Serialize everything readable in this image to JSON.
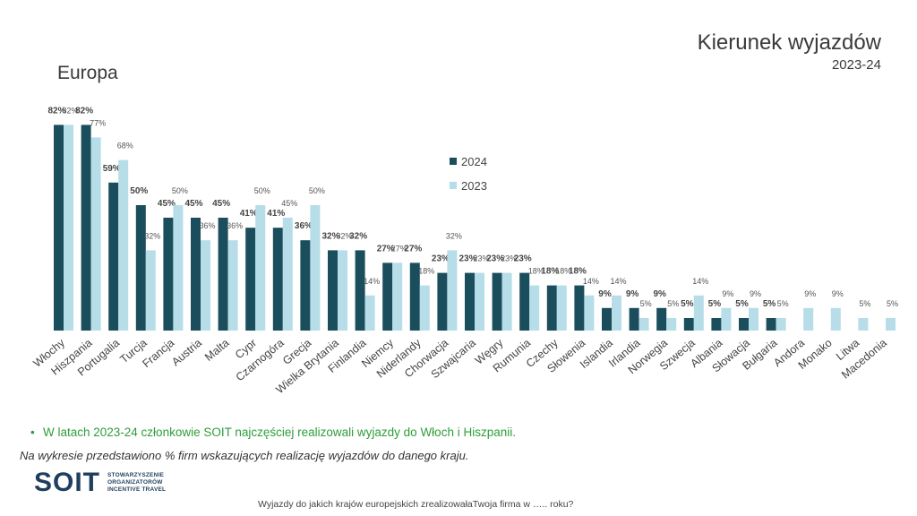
{
  "header": {
    "title": "Kierunek wyjazdów",
    "subtitle": "2023-24",
    "section_label": "Europa"
  },
  "chart_data": {
    "type": "bar",
    "categories": [
      "Włochy",
      "Hiszpania",
      "Portugalia",
      "Turcja",
      "Francja",
      "Austria",
      "Malta",
      "Cypr",
      "Czarnogóra",
      "Grecja",
      "Wielka Brytania",
      "Finlandia",
      "Niemcy",
      "Niderlandy",
      "Chorwacja",
      "Szwajcaria",
      "Węgry",
      "Rumunia",
      "Czechy",
      "Słowenia",
      "Islandia",
      "Irlandia",
      "Norwegia",
      "Szwecja",
      "Albania",
      "Słowacja",
      "Bułgaria",
      "Andora",
      "Monako",
      "Litwa",
      "Macedonia"
    ],
    "series": [
      {
        "name": "2024",
        "color": "#1b4e5c",
        "values": [
          82,
          82,
          59,
          50,
          45,
          45,
          45,
          41,
          41,
          36,
          32,
          32,
          27,
          27,
          23,
          23,
          23,
          23,
          18,
          18,
          9,
          9,
          9,
          5,
          5,
          5,
          5,
          null,
          null,
          null,
          null
        ]
      },
      {
        "name": "2023",
        "color": "#b6dde8",
        "values": [
          82,
          77,
          68,
          32,
          50,
          36,
          36,
          50,
          45,
          50,
          32,
          14,
          27,
          18,
          32,
          23,
          23,
          18,
          18,
          14,
          14,
          5,
          5,
          14,
          9,
          9,
          5,
          9,
          9,
          5,
          5
        ]
      }
    ],
    "value_suffix": "%",
    "ylim": [
      0,
      90
    ],
    "legend_position": "center",
    "grid": false
  },
  "bullet_text": "W latach 2023-24 członkowie SOIT najczęściej realizowali wyjazdy do Włoch i Hiszpanii.",
  "note_text": "Na wykresie przedstawiono % firm wskazujących realizację wyjazdów do danego kraju.",
  "logo": {
    "wordmark": "SOIT",
    "line1": "STOWARZYSZENIE",
    "line2": "ORGANIZATORÓW",
    "line3": "INCENTIVE TRAVEL"
  },
  "footer_text": "Wyjazdy do jakich krajów europejskich zrealizowałaTwoja firma w ….. roku?"
}
